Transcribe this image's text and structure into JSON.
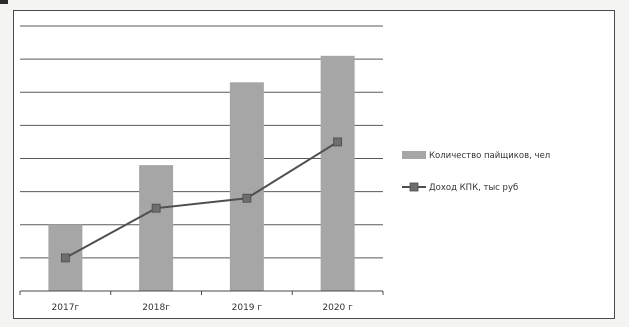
{
  "chart_data": {
    "type": "bar",
    "categories": [
      "2017г",
      "2018г",
      "2019 г",
      "2020 г"
    ],
    "ylim": [
      0,
      8
    ],
    "grid": true,
    "legend_position": "right",
    "series": [
      {
        "name": "Количество пайщиков, чел",
        "type": "bar",
        "values": [
          2,
          3.8,
          6.3,
          7.1
        ],
        "color": "#a6a6a6"
      },
      {
        "name": "Доход КПК, тыс руб",
        "type": "line",
        "values": [
          1,
          2.5,
          2.8,
          4.5
        ],
        "color": "#4f4f4f"
      }
    ],
    "title": "",
    "xlabel": "",
    "ylabel": ""
  }
}
